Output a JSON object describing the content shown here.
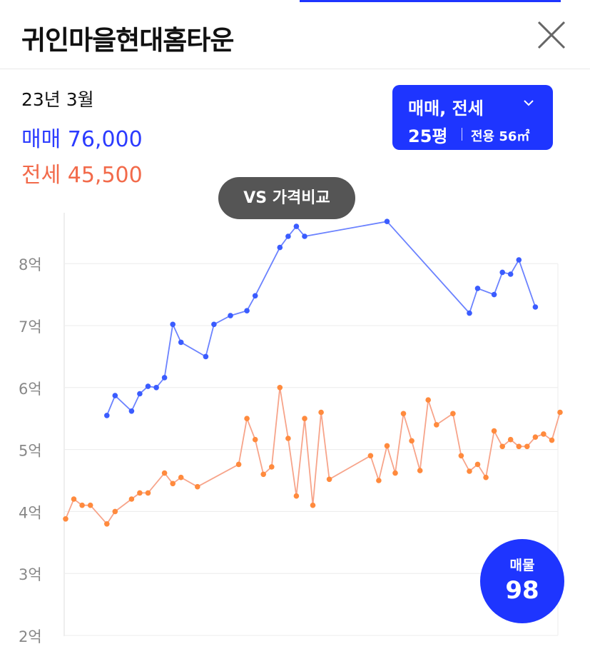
{
  "header": {
    "title": "귀인마을현대홈타운"
  },
  "summary": {
    "date": "23년 3월",
    "sale_label": "매매",
    "sale_value": "76,000",
    "jeonse_label": "전세",
    "jeonse_value": "45,500"
  },
  "filter": {
    "type_label": "매매, 전세",
    "area_label": "25평",
    "exclusive_label": "전용 56㎡"
  },
  "compare_button": {
    "label": "VS 가격비교"
  },
  "listing_badge": {
    "label": "매물",
    "count": "98"
  },
  "colors": {
    "accent": "#1e35ff",
    "sale": "#6b82ff",
    "jeonse": "#f7a48a"
  },
  "chart_data": {
    "type": "line",
    "yunit": "억",
    "ylim": [
      2,
      9
    ],
    "y_ticks": [
      "2억",
      "3억",
      "4억",
      "5억",
      "6억",
      "7억",
      "8억"
    ],
    "x_index_range": [
      0,
      59
    ],
    "series": [
      {
        "name": "매매",
        "color": "#6b82ff",
        "marker": "#3a5cff",
        "points": [
          [
            5,
            5.55
          ],
          [
            6,
            5.87
          ],
          [
            8,
            5.62
          ],
          [
            9,
            5.9
          ],
          [
            10,
            6.02
          ],
          [
            11,
            6.0
          ],
          [
            12,
            6.16
          ],
          [
            13,
            7.02
          ],
          [
            14,
            6.73
          ],
          [
            17,
            6.5
          ],
          [
            18,
            7.02
          ],
          [
            20,
            7.16
          ],
          [
            22,
            7.24
          ],
          [
            23,
            7.48
          ],
          [
            26,
            8.26
          ],
          [
            27,
            8.44
          ],
          [
            28,
            8.6
          ],
          [
            29,
            8.44
          ],
          [
            39,
            8.68
          ],
          [
            49,
            7.2
          ],
          [
            50,
            7.6
          ],
          [
            52,
            7.5
          ],
          [
            53,
            7.86
          ],
          [
            54,
            7.83
          ],
          [
            55,
            8.06
          ],
          [
            57,
            7.3
          ]
        ]
      },
      {
        "name": "전세",
        "color": "#f7a48a",
        "marker": "#ff8a3d",
        "points": [
          [
            0,
            3.88
          ],
          [
            1,
            4.2
          ],
          [
            2,
            4.1
          ],
          [
            3,
            4.1
          ],
          [
            5,
            3.8
          ],
          [
            6,
            4.0
          ],
          [
            8,
            4.2
          ],
          [
            9,
            4.3
          ],
          [
            10,
            4.3
          ],
          [
            12,
            4.62
          ],
          [
            13,
            4.45
          ],
          [
            14,
            4.55
          ],
          [
            16,
            4.4
          ],
          [
            21,
            4.76
          ],
          [
            22,
            5.5
          ],
          [
            23,
            5.16
          ],
          [
            24,
            4.6
          ],
          [
            25,
            4.72
          ],
          [
            26,
            6.0
          ],
          [
            27,
            5.18
          ],
          [
            28,
            4.25
          ],
          [
            29,
            5.5
          ],
          [
            30,
            4.1
          ],
          [
            31,
            5.6
          ],
          [
            32,
            4.52
          ],
          [
            37,
            4.9
          ],
          [
            38,
            4.5
          ],
          [
            39,
            5.06
          ],
          [
            40,
            4.62
          ],
          [
            41,
            5.58
          ],
          [
            42,
            5.14
          ],
          [
            43,
            4.66
          ],
          [
            44,
            5.8
          ],
          [
            45,
            5.4
          ],
          [
            47,
            5.58
          ],
          [
            48,
            4.9
          ],
          [
            49,
            4.65
          ],
          [
            50,
            4.76
          ],
          [
            51,
            4.55
          ],
          [
            52,
            5.3
          ],
          [
            53,
            5.05
          ],
          [
            54,
            5.16
          ],
          [
            55,
            5.05
          ],
          [
            56,
            5.05
          ],
          [
            57,
            5.2
          ],
          [
            58,
            5.25
          ],
          [
            59,
            5.15
          ],
          [
            60,
            5.6
          ]
        ]
      }
    ]
  }
}
